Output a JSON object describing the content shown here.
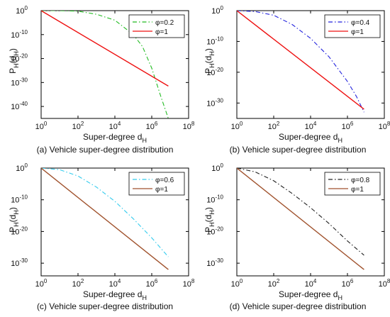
{
  "chart_data": [
    {
      "type": "line",
      "caption": "(a) Vehicle super-degree distribution",
      "xlabel": "Super-degree d",
      "xlabel_sub": "H",
      "ylabel": "P",
      "ylabel_sub": "H",
      "ylabel_arg": "(d",
      "ylabel_arg_sub": "H",
      "ylabel_close": ")",
      "xscale": "log",
      "yscale": "log",
      "xlim_exp": [
        0,
        8
      ],
      "ylim_exp": [
        -45,
        0
      ],
      "x_tick_exps": [
        0,
        2,
        4,
        6,
        8
      ],
      "y_tick_exps": [
        0,
        -10,
        -20,
        -30,
        -40
      ],
      "legend_position": "top-right",
      "series": [
        {
          "name": "φ=0.2",
          "color": "#22bb22",
          "dash": "dashdot",
          "x_exp": [
            0,
            1,
            2,
            3,
            4,
            5,
            5.5,
            6,
            6.5,
            6.9
          ],
          "y_exp": [
            0,
            0,
            -0.2,
            -1.5,
            -4,
            -10,
            -15,
            -24,
            -36,
            -45
          ]
        },
        {
          "name": "φ=1",
          "color": "#ee1111",
          "dash": "solid",
          "x_exp": [
            0,
            6.9
          ],
          "y_exp": [
            0,
            -31.5
          ]
        }
      ]
    },
    {
      "type": "line",
      "caption": "(b) Vehicle super-degree distribution",
      "xlabel": "Super-degree d",
      "xlabel_sub": "H",
      "ylabel": "P",
      "ylabel_sub": "H",
      "ylabel_arg": "(d",
      "ylabel_arg_sub": "H",
      "ylabel_close": ")",
      "xscale": "log",
      "yscale": "log",
      "xlim_exp": [
        0,
        8
      ],
      "ylim_exp": [
        -35,
        0
      ],
      "x_tick_exps": [
        0,
        2,
        4,
        6,
        8
      ],
      "y_tick_exps": [
        0,
        -10,
        -20,
        -30
      ],
      "legend_position": "top-right",
      "series": [
        {
          "name": "φ=0.4",
          "color": "#2222dd",
          "dash": "dashdot",
          "x_exp": [
            0,
            1,
            2,
            3,
            4,
            5,
            6,
            6.5,
            6.9
          ],
          "y_exp": [
            0,
            -0.3,
            -1.5,
            -4.5,
            -9,
            -15,
            -23,
            -28,
            -33
          ]
        },
        {
          "name": "φ=1",
          "color": "#ee1111",
          "dash": "solid",
          "x_exp": [
            0,
            6.9
          ],
          "y_exp": [
            0,
            -32
          ]
        }
      ]
    },
    {
      "type": "line",
      "caption": "(c) Vehicle super-degree distribution",
      "xlabel": "Super-degree d",
      "xlabel_sub": "H",
      "ylabel": "P",
      "ylabel_sub": "H",
      "ylabel_arg": "(d",
      "ylabel_arg_sub": "H",
      "ylabel_close": ")",
      "xscale": "log",
      "yscale": "log",
      "xlim_exp": [
        0,
        8
      ],
      "ylim_exp": [
        -34,
        0
      ],
      "x_tick_exps": [
        0,
        2,
        4,
        6,
        8
      ],
      "y_tick_exps": [
        0,
        -10,
        -20,
        -30
      ],
      "legend_position": "top-right",
      "series": [
        {
          "name": "φ=0.6",
          "color": "#33ccee",
          "dash": "dashdot",
          "x_exp": [
            0,
            1,
            2,
            3,
            4,
            5,
            6,
            6.9
          ],
          "y_exp": [
            0,
            -0.5,
            -2.5,
            -6,
            -10.5,
            -16,
            -22,
            -28
          ]
        },
        {
          "name": "φ=1",
          "color": "#a0522d",
          "dash": "solid",
          "x_exp": [
            0,
            6.9
          ],
          "y_exp": [
            0,
            -32
          ]
        }
      ]
    },
    {
      "type": "line",
      "caption": "(d) Vehicle super-degree distribution",
      "xlabel": "Super-degree d",
      "xlabel_sub": "H",
      "ylabel": "P",
      "ylabel_sub": "H",
      "ylabel_arg": "(d",
      "ylabel_arg_sub": "H",
      "ylabel_close": ")",
      "xscale": "log",
      "yscale": "log",
      "xlim_exp": [
        0,
        8
      ],
      "ylim_exp": [
        -34,
        0
      ],
      "x_tick_exps": [
        0,
        2,
        4,
        6,
        8
      ],
      "y_tick_exps": [
        0,
        -10,
        -20,
        -30
      ],
      "legend_position": "top-right",
      "series": [
        {
          "name": "φ=0.8",
          "color": "#222222",
          "dash": "dashdot",
          "x_exp": [
            0,
            1,
            2,
            3,
            4,
            5,
            6,
            6.9
          ],
          "y_exp": [
            0,
            -1.2,
            -4,
            -8,
            -12.5,
            -17.5,
            -23,
            -27.5
          ]
        },
        {
          "name": "φ=1",
          "color": "#a0522d",
          "dash": "solid",
          "x_exp": [
            0,
            6.9
          ],
          "y_exp": [
            0,
            -32
          ]
        }
      ]
    }
  ]
}
